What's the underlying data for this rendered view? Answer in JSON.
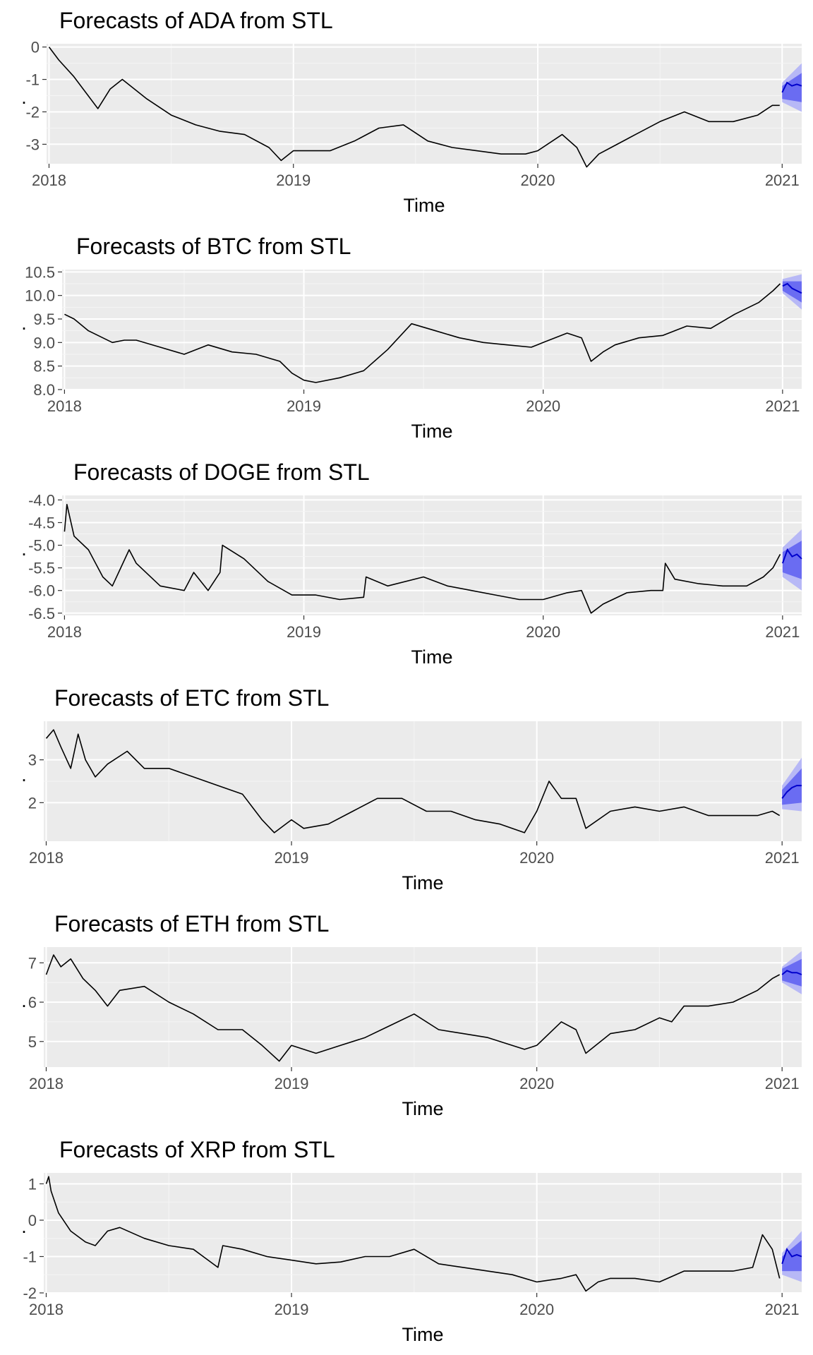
{
  "chart_data": [
    {
      "type": "line",
      "title": "Forecasts of ADA from STL",
      "xlabel": "Time",
      "ylabel": ".",
      "x_ticks": [
        "2018",
        "2019",
        "2020",
        "2021"
      ],
      "y_ticks": [
        "0",
        "-1",
        "-2",
        "-3"
      ],
      "xlim": [
        2017.99,
        2021.08
      ],
      "ylim": [
        -3.6,
        0.1
      ],
      "grid": true,
      "series": [
        {
          "role": "history",
          "x": [
            2018.0,
            2018.04,
            2018.1,
            2018.16,
            2018.2,
            2018.25,
            2018.3,
            2018.4,
            2018.5,
            2018.6,
            2018.7,
            2018.8,
            2018.9,
            2018.95,
            2019.0,
            2019.05,
            2019.15,
            2019.25,
            2019.35,
            2019.45,
            2019.55,
            2019.65,
            2019.75,
            2019.85,
            2019.95,
            2020.0,
            2020.1,
            2020.16,
            2020.2,
            2020.25,
            2020.3,
            2020.4,
            2020.5,
            2020.6,
            2020.7,
            2020.8,
            2020.9,
            2020.96,
            2020.99
          ],
          "y": [
            0.0,
            -0.4,
            -0.9,
            -1.5,
            -1.9,
            -1.3,
            -1.0,
            -1.6,
            -2.1,
            -2.4,
            -2.6,
            -2.7,
            -3.1,
            -3.5,
            -3.2,
            -3.2,
            -3.2,
            -2.9,
            -2.5,
            -2.4,
            -2.9,
            -3.1,
            -3.2,
            -3.3,
            -3.3,
            -3.2,
            -2.7,
            -3.1,
            -3.7,
            -3.3,
            -3.1,
            -2.7,
            -2.3,
            -2.0,
            -2.3,
            -2.3,
            -2.1,
            -1.8,
            -1.8
          ]
        },
        {
          "role": "forecast",
          "x": [
            2021.0,
            2021.02,
            2021.04,
            2021.06,
            2021.08
          ],
          "y": [
            -1.4,
            -1.1,
            -1.2,
            -1.15,
            -1.2
          ]
        },
        {
          "role": "interval_95",
          "x": [
            2021.0,
            2021.08
          ],
          "lower": [
            -1.7,
            -2.0
          ],
          "upper": [
            -1.1,
            -0.5
          ]
        },
        {
          "role": "interval_80",
          "x": [
            2021.0,
            2021.08
          ],
          "lower": [
            -1.6,
            -1.7
          ],
          "upper": [
            -1.2,
            -0.8
          ]
        }
      ]
    },
    {
      "type": "line",
      "title": "Forecasts of BTC from STL",
      "xlabel": "Time",
      "ylabel": ".",
      "x_ticks": [
        "2018",
        "2019",
        "2020",
        "2021"
      ],
      "y_ticks": [
        "10.5",
        "10.0",
        "9.5",
        "9.0",
        "8.5",
        "8.0"
      ],
      "xlim": [
        2017.99,
        2021.08
      ],
      "ylim": [
        8.0,
        10.55
      ],
      "grid": true,
      "series": [
        {
          "role": "history",
          "x": [
            2018.0,
            2018.04,
            2018.1,
            2018.16,
            2018.2,
            2018.25,
            2018.3,
            2018.4,
            2018.5,
            2018.6,
            2018.7,
            2018.8,
            2018.9,
            2018.95,
            2019.0,
            2019.05,
            2019.15,
            2019.25,
            2019.35,
            2019.45,
            2019.55,
            2019.65,
            2019.75,
            2019.85,
            2019.95,
            2020.0,
            2020.1,
            2020.16,
            2020.2,
            2020.25,
            2020.3,
            2020.4,
            2020.5,
            2020.6,
            2020.7,
            2020.8,
            2020.9,
            2020.96,
            2020.99
          ],
          "y": [
            9.6,
            9.5,
            9.25,
            9.1,
            9.0,
            9.05,
            9.05,
            8.9,
            8.75,
            8.95,
            8.8,
            8.75,
            8.6,
            8.35,
            8.2,
            8.15,
            8.25,
            8.4,
            8.85,
            9.4,
            9.25,
            9.1,
            9.0,
            8.95,
            8.9,
            9.0,
            9.2,
            9.1,
            8.6,
            8.8,
            8.95,
            9.1,
            9.15,
            9.35,
            9.3,
            9.6,
            9.85,
            10.1,
            10.25
          ]
        },
        {
          "role": "forecast",
          "x": [
            2021.0,
            2021.02,
            2021.04,
            2021.06,
            2021.08
          ],
          "y": [
            10.2,
            10.25,
            10.15,
            10.1,
            10.05
          ]
        },
        {
          "role": "interval_95",
          "x": [
            2021.0,
            2021.08
          ],
          "lower": [
            10.05,
            9.7
          ],
          "upper": [
            10.35,
            10.45
          ]
        },
        {
          "role": "interval_80",
          "x": [
            2021.0,
            2021.08
          ],
          "lower": [
            10.1,
            9.85
          ],
          "upper": [
            10.3,
            10.3
          ]
        }
      ]
    },
    {
      "type": "line",
      "title": "Forecasts of DOGE from STL",
      "xlabel": "Time",
      "ylabel": ".",
      "x_ticks": [
        "2018",
        "2019",
        "2020",
        "2021"
      ],
      "y_ticks": [
        "-4.0",
        "-4.5",
        "-5.0",
        "-5.5",
        "-6.0",
        "-6.5"
      ],
      "xlim": [
        2017.99,
        2021.08
      ],
      "ylim": [
        -6.55,
        -3.9
      ],
      "grid": true,
      "series": [
        {
          "role": "history",
          "x": [
            2018.0,
            2018.01,
            2018.04,
            2018.1,
            2018.16,
            2018.2,
            2018.27,
            2018.3,
            2018.4,
            2018.5,
            2018.54,
            2018.6,
            2018.65,
            2018.66,
            2018.75,
            2018.85,
            2018.95,
            2019.05,
            2019.15,
            2019.25,
            2019.26,
            2019.35,
            2019.5,
            2019.6,
            2019.7,
            2019.8,
            2019.9,
            2020.0,
            2020.1,
            2020.16,
            2020.2,
            2020.25,
            2020.35,
            2020.45,
            2020.5,
            2020.51,
            2020.55,
            2020.65,
            2020.75,
            2020.85,
            2020.92,
            2020.96,
            2020.99
          ],
          "y": [
            -4.7,
            -4.1,
            -4.8,
            -5.1,
            -5.7,
            -5.9,
            -5.1,
            -5.4,
            -5.9,
            -6.0,
            -5.6,
            -6.0,
            -5.6,
            -5.0,
            -5.3,
            -5.8,
            -6.1,
            -6.1,
            -6.2,
            -6.15,
            -5.7,
            -5.9,
            -5.7,
            -5.9,
            -6.0,
            -6.1,
            -6.2,
            -6.2,
            -6.05,
            -6.0,
            -6.5,
            -6.3,
            -6.05,
            -6.0,
            -6.0,
            -5.4,
            -5.75,
            -5.85,
            -5.9,
            -5.9,
            -5.7,
            -5.5,
            -5.2
          ]
        },
        {
          "role": "forecast",
          "x": [
            2021.0,
            2021.02,
            2021.04,
            2021.06,
            2021.08
          ],
          "y": [
            -5.4,
            -5.1,
            -5.25,
            -5.2,
            -5.3
          ]
        },
        {
          "role": "interval_95",
          "x": [
            2021.0,
            2021.08
          ],
          "lower": [
            -5.7,
            -6.0
          ],
          "upper": [
            -5.05,
            -4.65
          ]
        },
        {
          "role": "interval_80",
          "x": [
            2021.0,
            2021.08
          ],
          "lower": [
            -5.6,
            -5.75
          ],
          "upper": [
            -5.15,
            -4.9
          ]
        }
      ]
    },
    {
      "type": "line",
      "title": "Forecasts of ETC from STL",
      "xlabel": "Time",
      "ylabel": ".",
      "x_ticks": [
        "2018",
        "2019",
        "2020",
        "2021"
      ],
      "y_ticks": [
        "3",
        "2"
      ],
      "xlim": [
        2017.99,
        2021.08
      ],
      "ylim": [
        1.1,
        3.9
      ],
      "grid": true,
      "series": [
        {
          "role": "history",
          "x": [
            2018.0,
            2018.03,
            2018.06,
            2018.1,
            2018.13,
            2018.16,
            2018.2,
            2018.25,
            2018.33,
            2018.4,
            2018.5,
            2018.6,
            2018.7,
            2018.8,
            2018.88,
            2018.93,
            2019.0,
            2019.05,
            2019.15,
            2019.25,
            2019.35,
            2019.45,
            2019.55,
            2019.65,
            2019.75,
            2019.85,
            2019.95,
            2020.0,
            2020.05,
            2020.1,
            2020.16,
            2020.2,
            2020.3,
            2020.4,
            2020.5,
            2020.6,
            2020.7,
            2020.8,
            2020.9,
            2020.96,
            2020.99
          ],
          "y": [
            3.5,
            3.7,
            3.3,
            2.8,
            3.6,
            3.0,
            2.6,
            2.9,
            3.2,
            2.8,
            2.8,
            2.6,
            2.4,
            2.2,
            1.6,
            1.3,
            1.6,
            1.4,
            1.5,
            1.8,
            2.1,
            2.1,
            1.8,
            1.8,
            1.6,
            1.5,
            1.3,
            1.8,
            2.5,
            2.1,
            2.1,
            1.4,
            1.8,
            1.9,
            1.8,
            1.9,
            1.7,
            1.7,
            1.7,
            1.8,
            1.7
          ]
        },
        {
          "role": "forecast",
          "x": [
            2021.0,
            2021.02,
            2021.04,
            2021.06,
            2021.08
          ],
          "y": [
            2.1,
            2.25,
            2.35,
            2.4,
            2.4
          ]
        },
        {
          "role": "interval_95",
          "x": [
            2021.0,
            2021.08
          ],
          "lower": [
            1.85,
            1.8
          ],
          "upper": [
            2.4,
            3.05
          ]
        },
        {
          "role": "interval_80",
          "x": [
            2021.0,
            2021.08
          ],
          "lower": [
            1.95,
            2.0
          ],
          "upper": [
            2.3,
            2.8
          ]
        }
      ]
    },
    {
      "type": "line",
      "title": "Forecasts of ETH from STL",
      "xlabel": "Time",
      "ylabel": ".",
      "x_ticks": [
        "2018",
        "2019",
        "2020",
        "2021"
      ],
      "y_ticks": [
        "7",
        "6",
        "5"
      ],
      "xlim": [
        2017.99,
        2021.08
      ],
      "ylim": [
        4.35,
        7.4
      ],
      "grid": true,
      "series": [
        {
          "role": "history",
          "x": [
            2018.0,
            2018.03,
            2018.06,
            2018.1,
            2018.15,
            2018.2,
            2018.25,
            2018.3,
            2018.4,
            2018.5,
            2018.6,
            2018.7,
            2018.8,
            2018.88,
            2018.95,
            2019.0,
            2019.1,
            2019.2,
            2019.3,
            2019.4,
            2019.5,
            2019.6,
            2019.7,
            2019.8,
            2019.95,
            2020.0,
            2020.1,
            2020.16,
            2020.2,
            2020.3,
            2020.4,
            2020.5,
            2020.55,
            2020.6,
            2020.7,
            2020.8,
            2020.9,
            2020.96,
            2020.99
          ],
          "y": [
            6.7,
            7.2,
            6.9,
            7.1,
            6.6,
            6.3,
            5.9,
            6.3,
            6.4,
            6.0,
            5.7,
            5.3,
            5.3,
            4.9,
            4.5,
            4.9,
            4.7,
            4.9,
            5.1,
            5.4,
            5.7,
            5.3,
            5.2,
            5.1,
            4.8,
            4.9,
            5.5,
            5.3,
            4.7,
            5.2,
            5.3,
            5.6,
            5.5,
            5.9,
            5.9,
            6.0,
            6.3,
            6.6,
            6.7
          ]
        },
        {
          "role": "forecast",
          "x": [
            2021.0,
            2021.02,
            2021.04,
            2021.06,
            2021.08
          ],
          "y": [
            6.7,
            6.8,
            6.75,
            6.75,
            6.7
          ]
        },
        {
          "role": "interval_95",
          "x": [
            2021.0,
            2021.08
          ],
          "lower": [
            6.5,
            6.2
          ],
          "upper": [
            6.9,
            7.3
          ]
        },
        {
          "role": "interval_80",
          "x": [
            2021.0,
            2021.08
          ],
          "lower": [
            6.55,
            6.4
          ],
          "upper": [
            6.85,
            7.1
          ]
        }
      ]
    },
    {
      "type": "line",
      "title": "Forecasts of XRP from STL",
      "xlabel": "Time",
      "ylabel": ".",
      "x_ticks": [
        "2018",
        "2019",
        "2020",
        "2021"
      ],
      "y_ticks": [
        "1",
        "0",
        "-1",
        "-2"
      ],
      "xlim": [
        2017.99,
        2021.08
      ],
      "ylim": [
        -2.0,
        1.3
      ],
      "grid": true,
      "series": [
        {
          "role": "history",
          "x": [
            2018.0,
            2018.01,
            2018.02,
            2018.05,
            2018.1,
            2018.16,
            2018.2,
            2018.25,
            2018.3,
            2018.4,
            2018.5,
            2018.6,
            2018.7,
            2018.72,
            2018.8,
            2018.9,
            2019.0,
            2019.1,
            2019.2,
            2019.3,
            2019.4,
            2019.5,
            2019.6,
            2019.7,
            2019.8,
            2019.9,
            2020.0,
            2020.1,
            2020.16,
            2020.2,
            2020.25,
            2020.3,
            2020.4,
            2020.5,
            2020.6,
            2020.7,
            2020.8,
            2020.88,
            2020.92,
            2020.96,
            2020.99
          ],
          "y": [
            1.0,
            1.2,
            0.8,
            0.2,
            -0.3,
            -0.6,
            -0.7,
            -0.3,
            -0.2,
            -0.5,
            -0.7,
            -0.8,
            -1.3,
            -0.7,
            -0.8,
            -1.0,
            -1.1,
            -1.2,
            -1.15,
            -1.0,
            -1.0,
            -0.8,
            -1.2,
            -1.3,
            -1.4,
            -1.5,
            -1.7,
            -1.6,
            -1.5,
            -1.95,
            -1.7,
            -1.6,
            -1.6,
            -1.7,
            -1.4,
            -1.4,
            -1.4,
            -1.3,
            -0.4,
            -0.8,
            -1.6
          ]
        },
        {
          "role": "forecast",
          "x": [
            2021.0,
            2021.02,
            2021.04,
            2021.06,
            2021.08
          ],
          "y": [
            -1.2,
            -0.8,
            -1.0,
            -0.95,
            -1.0
          ]
        },
        {
          "role": "interval_95",
          "x": [
            2021.0,
            2021.08
          ],
          "lower": [
            -1.5,
            -1.7
          ],
          "upper": [
            -0.9,
            -0.3
          ]
        },
        {
          "role": "interval_80",
          "x": [
            2021.0,
            2021.08
          ],
          "lower": [
            -1.4,
            -1.4
          ],
          "upper": [
            -1.0,
            -0.55
          ]
        }
      ]
    }
  ]
}
